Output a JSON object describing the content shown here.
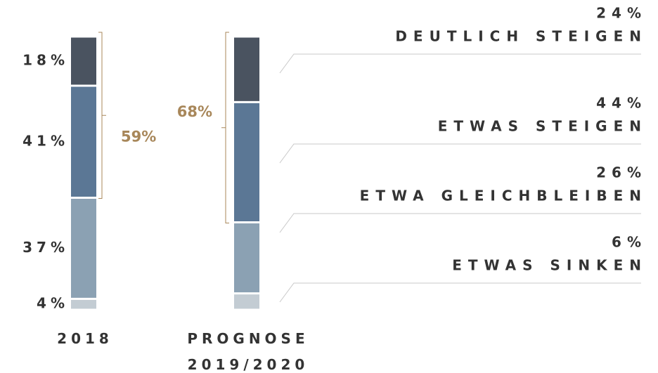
{
  "chart_data": {
    "type": "stacked_bar",
    "categories": [
      "2018",
      "PROGNOSE 2019/2020"
    ],
    "ylim": [
      0,
      100
    ],
    "series": [
      {
        "name": "ETWAS SINKEN",
        "color": "#c3ccd3",
        "values": [
          4,
          6
        ],
        "value_labels": [
          "4%",
          "6%"
        ]
      },
      {
        "name": "ETWA GLEICHBLEIBEN",
        "color": "#8ba1b3",
        "values": [
          37,
          26
        ],
        "value_labels": [
          "37%",
          "26%"
        ]
      },
      {
        "name": "ETWAS STEIGEN",
        "color": "#5b7795",
        "values": [
          41,
          44
        ],
        "value_labels": [
          "41%",
          "44%"
        ]
      },
      {
        "name": "DEUTLICH STEIGEN",
        "color": "#4a5360",
        "values": [
          18,
          24
        ],
        "value_labels": [
          "18%",
          "24%"
        ]
      }
    ],
    "totals": {
      "color": "#a8875a",
      "values": [
        59,
        68
      ],
      "value_labels": [
        "59%",
        "68%"
      ]
    }
  }
}
